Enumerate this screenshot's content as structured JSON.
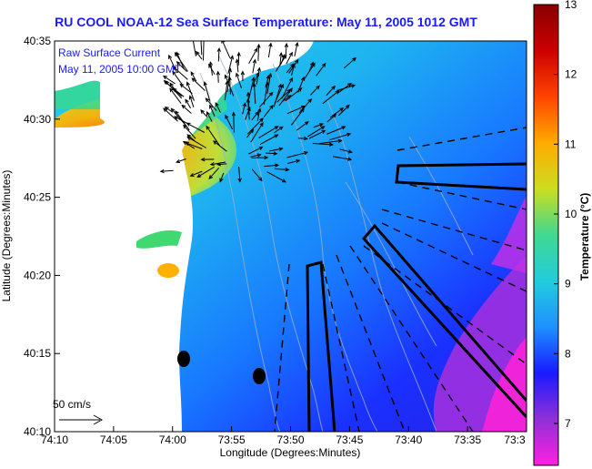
{
  "title": "RU COOL   NOAA-12  Sea Surface Temperature:  May 11, 2005 1012 GMT",
  "annotation": {
    "line1": "Raw Surface Current",
    "line2": "May 11, 2005 10:00 GMT"
  },
  "scale": {
    "label": "50 cm/s"
  },
  "axes": {
    "xlabel": "Longitude (Degrees:Minutes)",
    "ylabel": "Latitude (Degrees:Minutes)",
    "x_ticks": [
      "74:10",
      "74:05",
      "74:00",
      "73:55",
      "73:50",
      "73:45",
      "73:40",
      "73:35",
      "73:3"
    ],
    "y_ticks": [
      "40:35",
      "40:30",
      "40:25",
      "40:20",
      "40:15",
      "40:10"
    ]
  },
  "colorbar": {
    "label": "Temperature (°C)",
    "ticks": [
      "13",
      "12",
      "11",
      "10",
      "9",
      "8",
      "7"
    ],
    "range": [
      6.4,
      13
    ],
    "colors": [
      "#ff20e0",
      "#9030d8",
      "#1a1aff",
      "#1e90ff",
      "#22ccdd",
      "#40d890",
      "#ccdd20",
      "#ffaa00",
      "#ff4400",
      "#cc0000",
      "#880000"
    ]
  }
}
